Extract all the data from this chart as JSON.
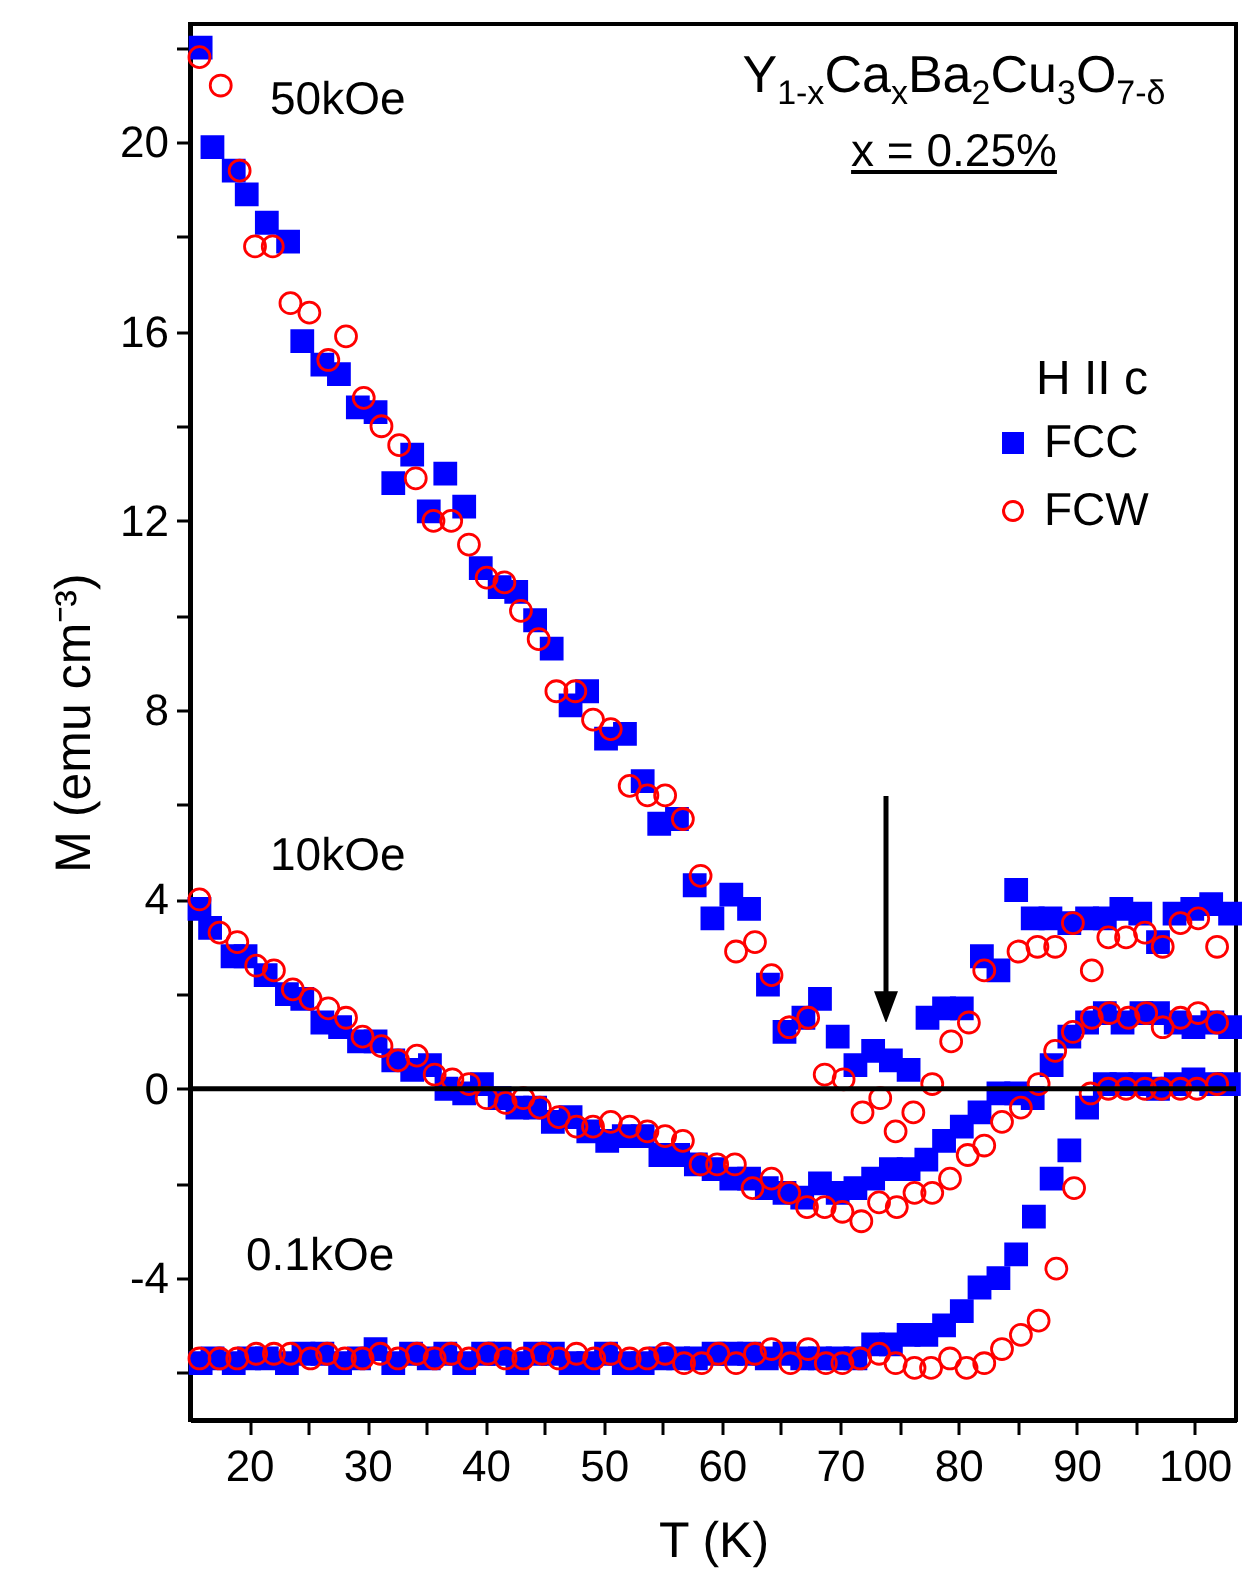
{
  "chart_data": {
    "type": "scatter",
    "title": "Y$_{1-x}$Ca$_{x}$Ba$_{2}$Cu$_{3}$O$_{7-δ}$",
    "subtitle": "x = 0.25%",
    "xlabel": "T (K)",
    "ylabel": "M (emu cm⁻³)",
    "legend_title": "H II c",
    "legend": "top right",
    "grid": false,
    "xlim": [
      15,
      103.5
    ],
    "ylim": [
      -7,
      22.5
    ],
    "xticks": [
      20,
      {
        "value": 25,
        "label": null
      },
      30,
      {
        "value": 35,
        "label": null
      },
      40,
      {
        "value": 45,
        "label": null
      },
      50,
      {
        "value": 55,
        "label": null
      },
      60,
      {
        "value": 65,
        "label": null
      },
      70,
      {
        "value": 75,
        "label": null
      },
      80,
      {
        "value": 85,
        "label": null
      },
      90,
      {
        "value": 95,
        "label": null
      },
      100
    ],
    "yticks": [
      {
        "value": -6,
        "label": null
      },
      -4,
      {
        "value": -2,
        "label": null
      },
      0,
      {
        "value": 2,
        "label": null
      },
      4,
      {
        "value": 6,
        "label": null
      },
      8,
      {
        "value": 10,
        "label": null
      },
      12,
      {
        "value": 14,
        "label": null
      },
      16,
      {
        "value": 18,
        "label": null
      },
      20,
      {
        "value": 22,
        "label": null
      }
    ],
    "ref_lines": [
      {
        "axis": "y",
        "value": 0,
        "color": "#000000"
      }
    ],
    "annotations": [
      "50kOe",
      "10kOe",
      "0.1kOe"
    ],
    "series": [
      {
        "name": "FCC",
        "color": "#0000ff",
        "marker": "square",
        "x": [
          15.9,
          16.9,
          18.7,
          19.8,
          21.5,
          23.3,
          24.5,
          26.2,
          27.6,
          29.2,
          30.7,
          32.2,
          33.8,
          35.2,
          36.6,
          38.2,
          39.6,
          41.2,
          42.6,
          44.2,
          45.6,
          47.2,
          48.6,
          50.2,
          51.8,
          53.3,
          54.7,
          56.2,
          57.7,
          59.2,
          60.8,
          62.3,
          63.9,
          65.3,
          66.9,
          68.3,
          69.8,
          71.3,
          72.8,
          74.3,
          75.8,
          77.4,
          78.8,
          80.3,
          82.0,
          83.4,
          84.9,
          86.3,
          87.8,
          89.4,
          90.9,
          92.4,
          93.8,
          95.4,
          96.9,
          98.3,
          99.8,
          101.4,
          103.0,
          15.8,
          16.7,
          18.6,
          19.7,
          21.4,
          23.2,
          24.5,
          26.2,
          27.7,
          29.3,
          30.7,
          32.2,
          33.8,
          35.3,
          36.7,
          38.2,
          39.7,
          41.2,
          42.7,
          44.2,
          45.7,
          47.2,
          48.7,
          50.3,
          51.7,
          53.3,
          54.8,
          56.3,
          57.8,
          59.3,
          60.8,
          62.3,
          63.8,
          65.3,
          66.8,
          68.3,
          69.8,
          71.3,
          72.8,
          74.3,
          75.8,
          77.3,
          78.8,
          80.3,
          81.8,
          83.4,
          84.9,
          86.3,
          87.9,
          89.4,
          90.9,
          92.4,
          93.9,
          95.5,
          96.9,
          98.4,
          99.9,
          101.5,
          103.0,
          15.9,
          16.9,
          18.7,
          20.0,
          21.5,
          23.2,
          24.6,
          26.2,
          27.7,
          29.3,
          30.7,
          32.2,
          33.7,
          35.2,
          36.6,
          38.2,
          39.8,
          41.2,
          42.7,
          44.2,
          45.7,
          47.2,
          48.7,
          50.2,
          51.7,
          53.3,
          54.8,
          56.3,
          57.8,
          59.3,
          60.8,
          62.3,
          63.8,
          65.3,
          66.8,
          68.3,
          69.8,
          71.3,
          72.8,
          74.3,
          75.8,
          77.3,
          78.8,
          80.3,
          81.8,
          83.4,
          84.9,
          86.4,
          87.9,
          89.4,
          90.9,
          92.4,
          93.8,
          95.4,
          96.9,
          98.4,
          99.9,
          101.4,
          102.9
        ],
        "values": [
          22.0,
          19.9,
          19.4,
          18.9,
          18.3,
          17.9,
          15.8,
          15.3,
          15.1,
          14.4,
          14.3,
          12.8,
          13.4,
          12.2,
          13.0,
          12.3,
          11.0,
          10.6,
          10.5,
          9.9,
          9.3,
          8.1,
          8.4,
          7.4,
          7.5,
          6.5,
          5.6,
          5.7,
          4.3,
          3.6,
          4.1,
          3.8,
          2.2,
          1.2,
          1.5,
          1.9,
          1.1,
          0.5,
          0.8,
          0.6,
          0.4,
          1.5,
          1.7,
          1.7,
          2.8,
          2.5,
          4.2,
          3.6,
          3.6,
          3.5,
          3.6,
          3.6,
          3.8,
          3.7,
          3.1,
          3.7,
          3.8,
          3.9,
          3.7,
          3.8,
          3.4,
          2.8,
          2.8,
          2.4,
          2.0,
          1.9,
          1.4,
          1.3,
          1.0,
          1.0,
          0.6,
          0.4,
          0.5,
          0.0,
          -0.1,
          0.1,
          -0.2,
          -0.4,
          -0.4,
          -0.7,
          -0.6,
          -0.9,
          -1.1,
          -1.0,
          -1.0,
          -1.4,
          -1.4,
          -1.6,
          -1.7,
          -1.9,
          -1.9,
          -2.1,
          -2.2,
          -2.3,
          -2.0,
          -2.2,
          -2.1,
          -1.9,
          -1.7,
          -1.7,
          -1.5,
          -1.1,
          -0.8,
          -0.5,
          -0.1,
          -0.1,
          -0.2,
          0.5,
          1.1,
          1.4,
          1.6,
          1.4,
          1.6,
          1.6,
          1.4,
          1.3,
          1.4,
          1.3,
          -5.8,
          -5.7,
          -5.8,
          -5.7,
          -5.7,
          -5.8,
          -5.6,
          -5.6,
          -5.8,
          -5.7,
          -5.5,
          -5.8,
          -5.6,
          -5.7,
          -5.6,
          -5.8,
          -5.6,
          -5.6,
          -5.8,
          -5.6,
          -5.6,
          -5.8,
          -5.8,
          -5.6,
          -5.8,
          -5.8,
          -5.7,
          -5.7,
          -5.7,
          -5.6,
          -5.6,
          -5.6,
          -5.7,
          -5.6,
          -5.7,
          -5.7,
          -5.7,
          -5.7,
          -5.4,
          -5.4,
          -5.2,
          -5.2,
          -5.0,
          -4.7,
          -4.2,
          -4.0,
          -3.5,
          -2.7,
          -1.9,
          -1.3,
          -0.4,
          0.1,
          0.1,
          0.1,
          0.0,
          0.1,
          0.2,
          0.1,
          0.1
        ]
      },
      {
        "name": "FCW",
        "color": "#ff0000",
        "marker": "circle",
        "x": [
          15.8,
          17.6,
          19.2,
          20.5,
          22.0,
          23.5,
          25.1,
          26.7,
          28.2,
          29.7,
          31.2,
          32.7,
          34.1,
          35.6,
          37.1,
          38.6,
          40.1,
          41.6,
          43.0,
          44.5,
          46.0,
          47.6,
          49.1,
          50.6,
          52.2,
          53.7,
          55.2,
          56.7,
          58.2,
          61.2,
          62.8,
          64.2,
          65.7,
          67.3,
          68.7,
          70.3,
          71.9,
          73.4,
          74.7,
          76.2,
          77.8,
          79.4,
          80.9,
          82.2,
          85.1,
          86.7,
          88.2,
          89.7,
          91.3,
          92.7,
          94.2,
          95.8,
          97.3,
          98.8,
          100.3,
          101.9,
          15.8,
          17.5,
          19.0,
          20.6,
          22.1,
          23.7,
          25.2,
          26.7,
          28.2,
          29.6,
          31.2,
          32.6,
          34.2,
          35.7,
          37.2,
          38.6,
          40.1,
          41.7,
          43.2,
          44.6,
          46.2,
          47.7,
          49.1,
          50.6,
          52.2,
          53.7,
          55.2,
          56.7,
          58.2,
          59.6,
          61.1,
          62.6,
          64.2,
          65.7,
          67.2,
          68.7,
          70.2,
          71.8,
          73.3,
          74.8,
          76.3,
          77.8,
          79.3,
          80.8,
          82.2,
          83.7,
          85.3,
          86.8,
          88.2,
          89.7,
          91.3,
          92.8,
          94.4,
          95.9,
          97.3,
          98.8,
          100.3,
          101.9,
          15.8,
          17.5,
          19.0,
          20.6,
          22.1,
          23.5,
          25.2,
          26.6,
          28.1,
          29.6,
          31.1,
          32.6,
          34.2,
          35.7,
          37.1,
          38.6,
          40.2,
          41.7,
          43.2,
          44.8,
          46.2,
          47.7,
          49.2,
          50.6,
          52.2,
          53.7,
          55.2,
          56.8,
          58.3,
          59.7,
          61.2,
          62.8,
          64.2,
          65.8,
          67.3,
          68.8,
          70.2,
          71.7,
          73.3,
          74.7,
          76.3,
          77.7,
          79.3,
          80.7,
          82.2,
          83.7,
          85.3,
          86.8,
          88.3,
          89.8,
          91.2,
          92.7,
          94.2,
          95.8,
          97.2,
          98.8,
          100.2,
          101.9
        ],
        "values": [
          21.8,
          21.2,
          19.4,
          17.8,
          17.8,
          16.6,
          16.4,
          15.4,
          15.9,
          14.6,
          14.0,
          13.6,
          12.9,
          12.0,
          12.0,
          11.5,
          10.8,
          10.7,
          10.1,
          9.5,
          8.4,
          8.4,
          7.8,
          7.6,
          6.4,
          6.2,
          6.2,
          5.7,
          4.5,
          2.9,
          3.1,
          2.4,
          1.3,
          1.5,
          0.3,
          0.2,
          -0.5,
          -0.2,
          -0.9,
          -0.5,
          0.1,
          1.0,
          1.4,
          2.5,
          2.9,
          3.0,
          3.0,
          3.5,
          2.5,
          3.2,
          3.2,
          3.3,
          3.0,
          3.5,
          3.6,
          3.0,
          4.0,
          3.3,
          3.1,
          2.6,
          2.5,
          2.1,
          1.9,
          1.7,
          1.5,
          1.1,
          0.9,
          0.6,
          0.7,
          0.3,
          0.2,
          0.1,
          -0.2,
          -0.3,
          -0.2,
          -0.4,
          -0.6,
          -0.8,
          -0.8,
          -0.7,
          -0.8,
          -0.9,
          -1.0,
          -1.1,
          -1.6,
          -1.6,
          -1.6,
          -2.1,
          -1.9,
          -2.2,
          -2.5,
          -2.5,
          -2.6,
          -2.8,
          -2.4,
          -2.5,
          -2.2,
          -2.2,
          -1.9,
          -1.4,
          -1.2,
          -0.7,
          -0.4,
          0.1,
          0.8,
          1.2,
          1.5,
          1.6,
          1.5,
          1.6,
          1.3,
          1.5,
          1.6,
          1.4,
          -5.7,
          -5.7,
          -5.7,
          -5.6,
          -5.6,
          -5.6,
          -5.7,
          -5.6,
          -5.7,
          -5.7,
          -5.6,
          -5.7,
          -5.6,
          -5.7,
          -5.6,
          -5.7,
          -5.6,
          -5.7,
          -5.7,
          -5.6,
          -5.7,
          -5.6,
          -5.7,
          -5.6,
          -5.7,
          -5.7,
          -5.6,
          -5.8,
          -5.8,
          -5.6,
          -5.8,
          -5.6,
          -5.5,
          -5.8,
          -5.5,
          -5.8,
          -5.8,
          -5.7,
          -5.6,
          -5.8,
          -5.9,
          -5.9,
          -5.7,
          -5.9,
          -5.8,
          -5.5,
          -5.2,
          -4.9,
          -3.8,
          -2.1,
          -0.1,
          0.0,
          0.0,
          0.0,
          0.0,
          0.0,
          0.0,
          0.1
        ]
      }
    ]
  }
}
